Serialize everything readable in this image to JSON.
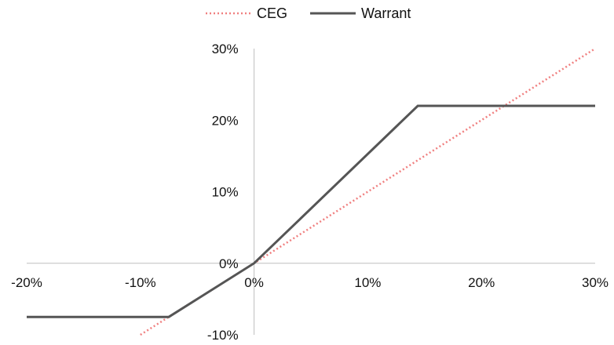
{
  "chart_data": {
    "type": "line",
    "title": "",
    "xlabel": "",
    "ylabel": "",
    "xlim": [
      -20,
      30
    ],
    "ylim": [
      -10,
      30
    ],
    "x_ticks": [
      -20,
      -10,
      0,
      10,
      20,
      30
    ],
    "x_tick_labels": [
      "-20%",
      "-10%",
      "0%",
      "10%",
      "20%",
      "30%"
    ],
    "y_ticks": [
      -10,
      0,
      10,
      20,
      30
    ],
    "y_tick_labels": [
      "-10%",
      "0%",
      "10%",
      "20%",
      "30%"
    ],
    "grid": false,
    "legend_position": "top-center",
    "series": [
      {
        "name": "CEG",
        "style": "dotted",
        "color": "#f08080",
        "points": [
          [
            -10,
            -10
          ],
          [
            30,
            30
          ]
        ]
      },
      {
        "name": "Warrant",
        "style": "solid",
        "color": "#555555",
        "points": [
          [
            -20,
            -7.5
          ],
          [
            -7.5,
            -7.5
          ],
          [
            0,
            0
          ],
          [
            14.4,
            22
          ],
          [
            30,
            22
          ]
        ]
      }
    ]
  }
}
